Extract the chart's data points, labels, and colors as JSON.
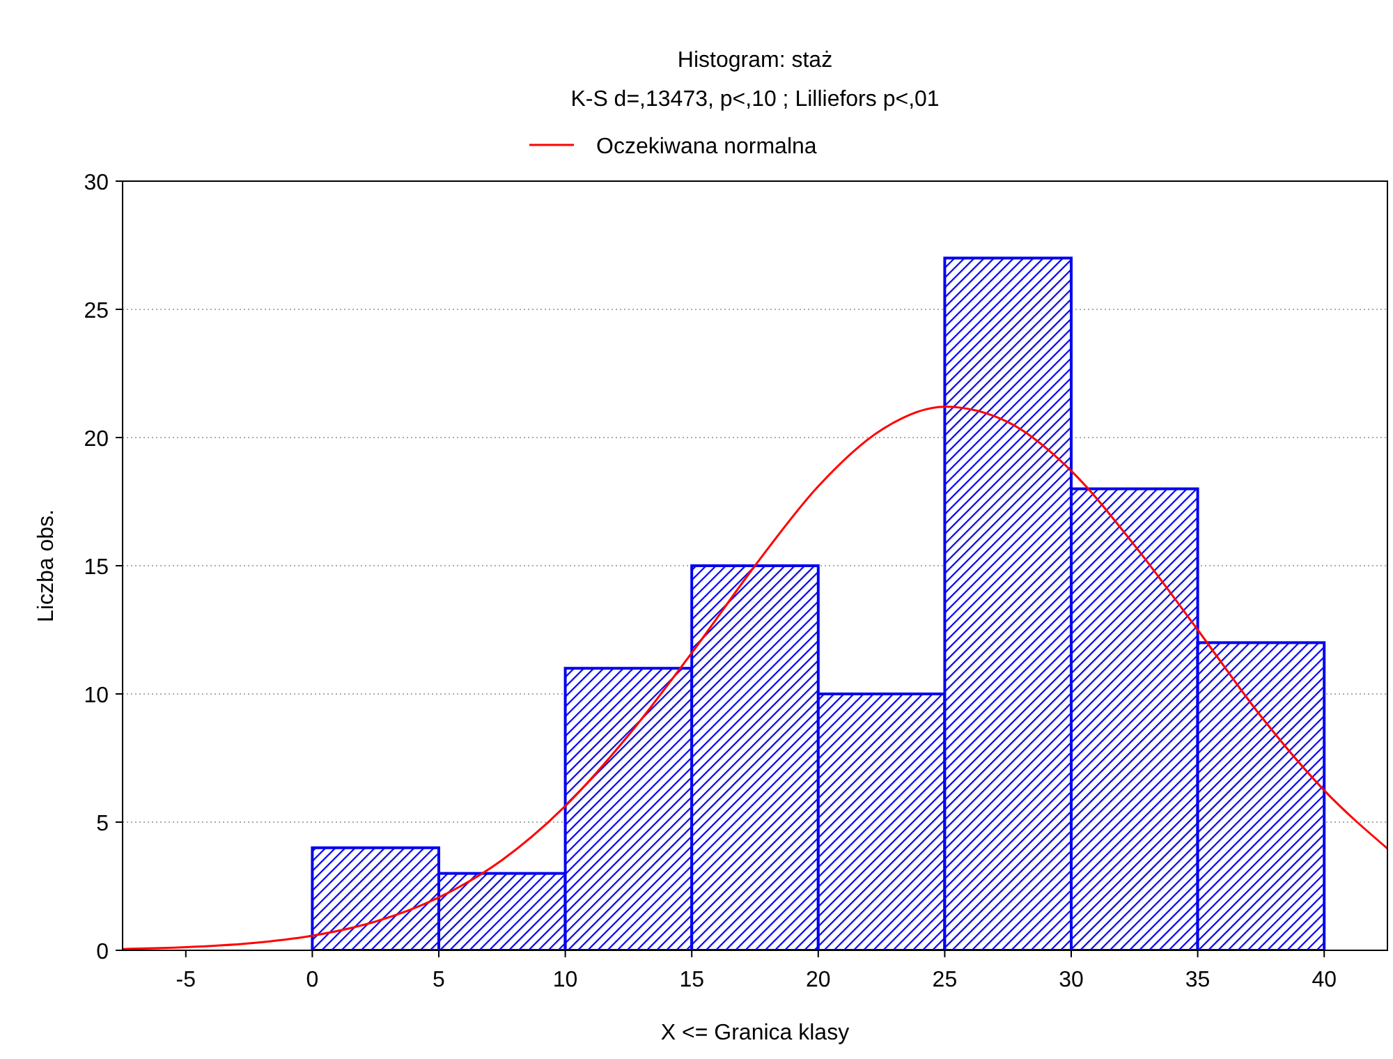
{
  "chart_data": {
    "type": "histogram",
    "title": "Histogram: staż",
    "subtitle": "K-S d=,13473, p<,10 ; Lilliefors p<,01",
    "xlabel": "X <= Granica klasy",
    "ylabel": "Liczba obs.",
    "xlim": [
      -7.5,
      42.5
    ],
    "xticks": [
      -5,
      0,
      5,
      10,
      15,
      20,
      25,
      30,
      35,
      40
    ],
    "ylim": [
      0,
      30
    ],
    "yticks": [
      0,
      5,
      10,
      15,
      20,
      25,
      30
    ],
    "grid": "y",
    "legend": "top",
    "marker": "none",
    "line_style": "solid",
    "series": [
      {
        "type": "histogram",
        "color": "#0000ee",
        "bins": [
          0,
          5,
          10,
          15,
          20,
          25,
          30,
          35,
          40
        ],
        "values": [
          4,
          3,
          11,
          15,
          10,
          27,
          18,
          12
        ]
      },
      {
        "type": "line",
        "name": "Oczekiwana normalna",
        "color": "#ff0000",
        "x": [
          -7.5,
          -5,
          -2.5,
          0,
          2.5,
          5,
          7.5,
          10,
          12.5,
          15,
          17.5,
          20,
          22.5,
          25,
          27.5,
          30,
          32.5,
          35,
          37.5,
          40,
          42.5
        ],
        "values": [
          0.05,
          0.12,
          0.27,
          0.57,
          1.12,
          2.06,
          3.52,
          5.63,
          8.39,
          11.6,
          15.0,
          18.1,
          20.3,
          21.2,
          20.6,
          18.7,
          15.8,
          12.5,
          9.13,
          6.24,
          3.97
        ]
      }
    ]
  }
}
